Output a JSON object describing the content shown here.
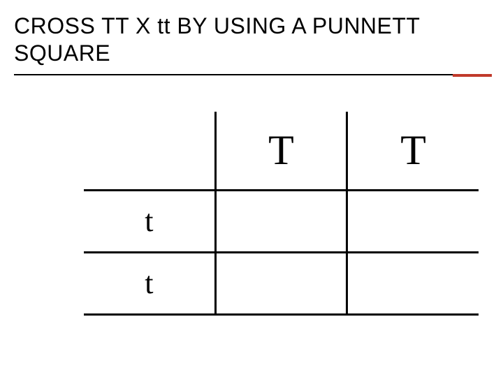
{
  "colors": {
    "accent": "#c0392b",
    "text": "#000000",
    "line": "#000000",
    "background": "#ffffff"
  },
  "title": "CROSS TT X tt BY USING A PUNNETT SQUARE",
  "punnett": {
    "type": "table",
    "columns": [
      "T",
      "T"
    ],
    "rows": [
      "t",
      "t"
    ],
    "cells": [
      [
        "",
        ""
      ],
      [
        "",
        ""
      ]
    ],
    "col_header_fontsize": 60,
    "row_header_fontsize": 44,
    "font_family": "Comic Sans MS",
    "line_width": 3
  }
}
